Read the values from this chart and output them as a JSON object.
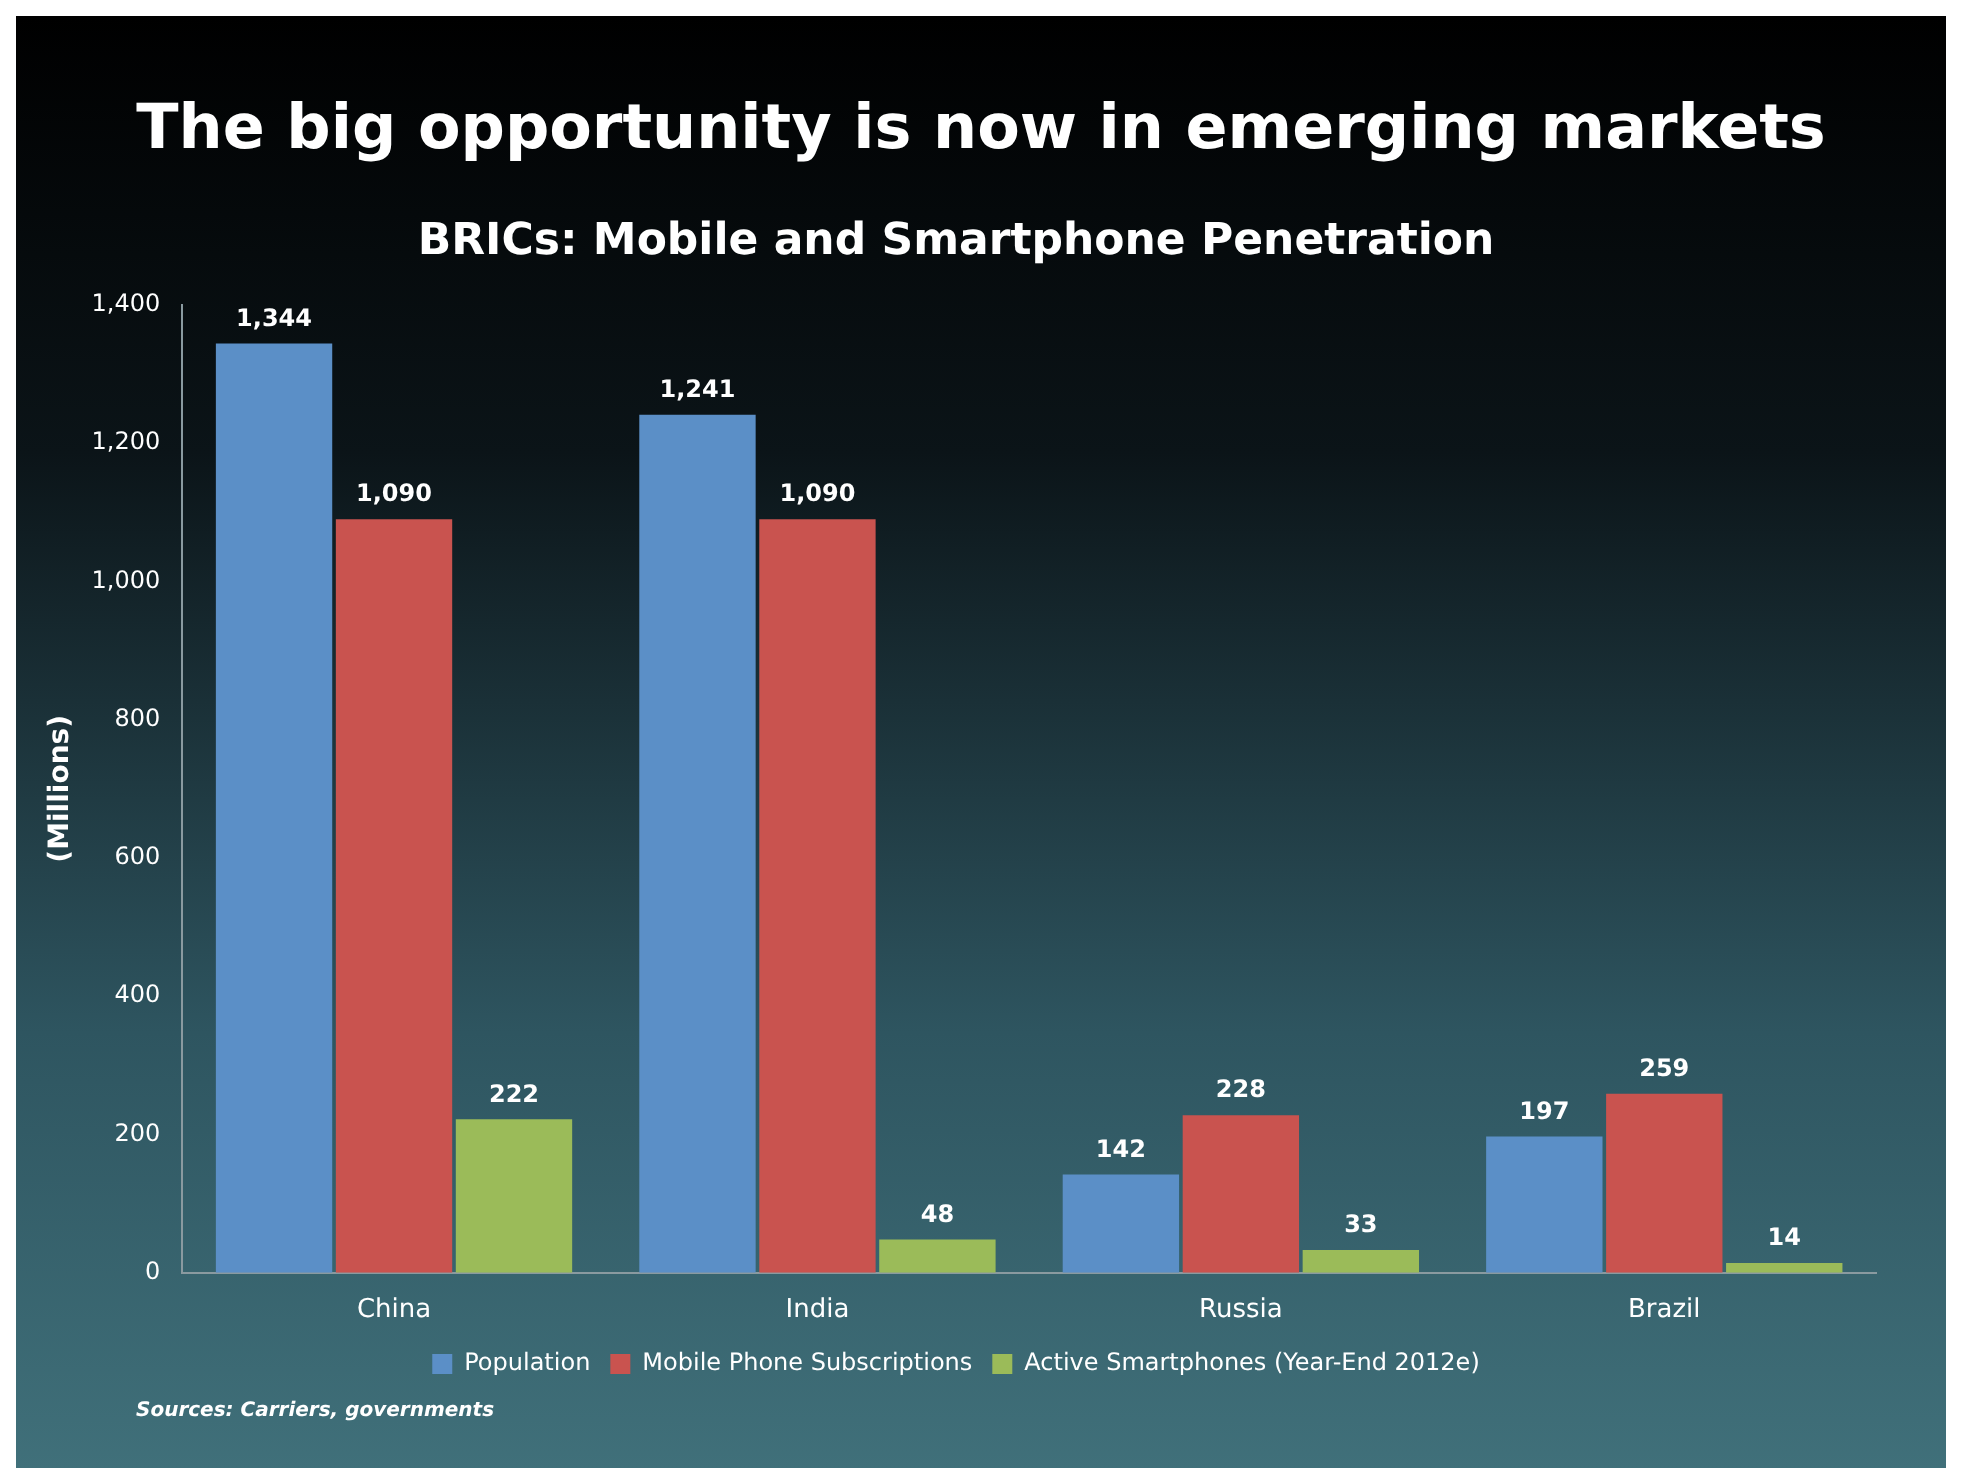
{
  "chart_data": {
    "type": "bar",
    "title": "The big opportunity is now in emerging markets",
    "subtitle": "BRICs: Mobile and Smartphone Penetration",
    "ylabel": "(Millions)",
    "categories": [
      "China",
      "India",
      "Russia",
      "Brazil"
    ],
    "series": [
      {
        "name": "Population",
        "color": "#5b8fc7",
        "values": [
          1344,
          1241,
          142,
          197
        ],
        "value_labels": [
          "1,344",
          "1,241",
          "142",
          "197"
        ]
      },
      {
        "name": "Mobile Phone Subscriptions",
        "color": "#c9534f",
        "values": [
          1090,
          1090,
          228,
          259
        ],
        "value_labels": [
          "1,090",
          "1,090",
          "228",
          "259"
        ]
      },
      {
        "name": "Active Smartphones (Year-End 2012e)",
        "color": "#9bbb59",
        "values": [
          222,
          48,
          33,
          14
        ],
        "value_labels": [
          "222",
          "48",
          "33",
          "14"
        ]
      }
    ],
    "ylim": [
      0,
      1400
    ],
    "yticks": [
      0,
      200,
      400,
      600,
      800,
      {
        "value": 1000,
        "label": "1,000"
      },
      {
        "value": 1200,
        "label": "1,200"
      },
      {
        "value": 1400,
        "label": "1,400"
      }
    ],
    "legend": "bottom",
    "grid": false,
    "annotations": [
      "Sources: Carriers, governments"
    ]
  }
}
